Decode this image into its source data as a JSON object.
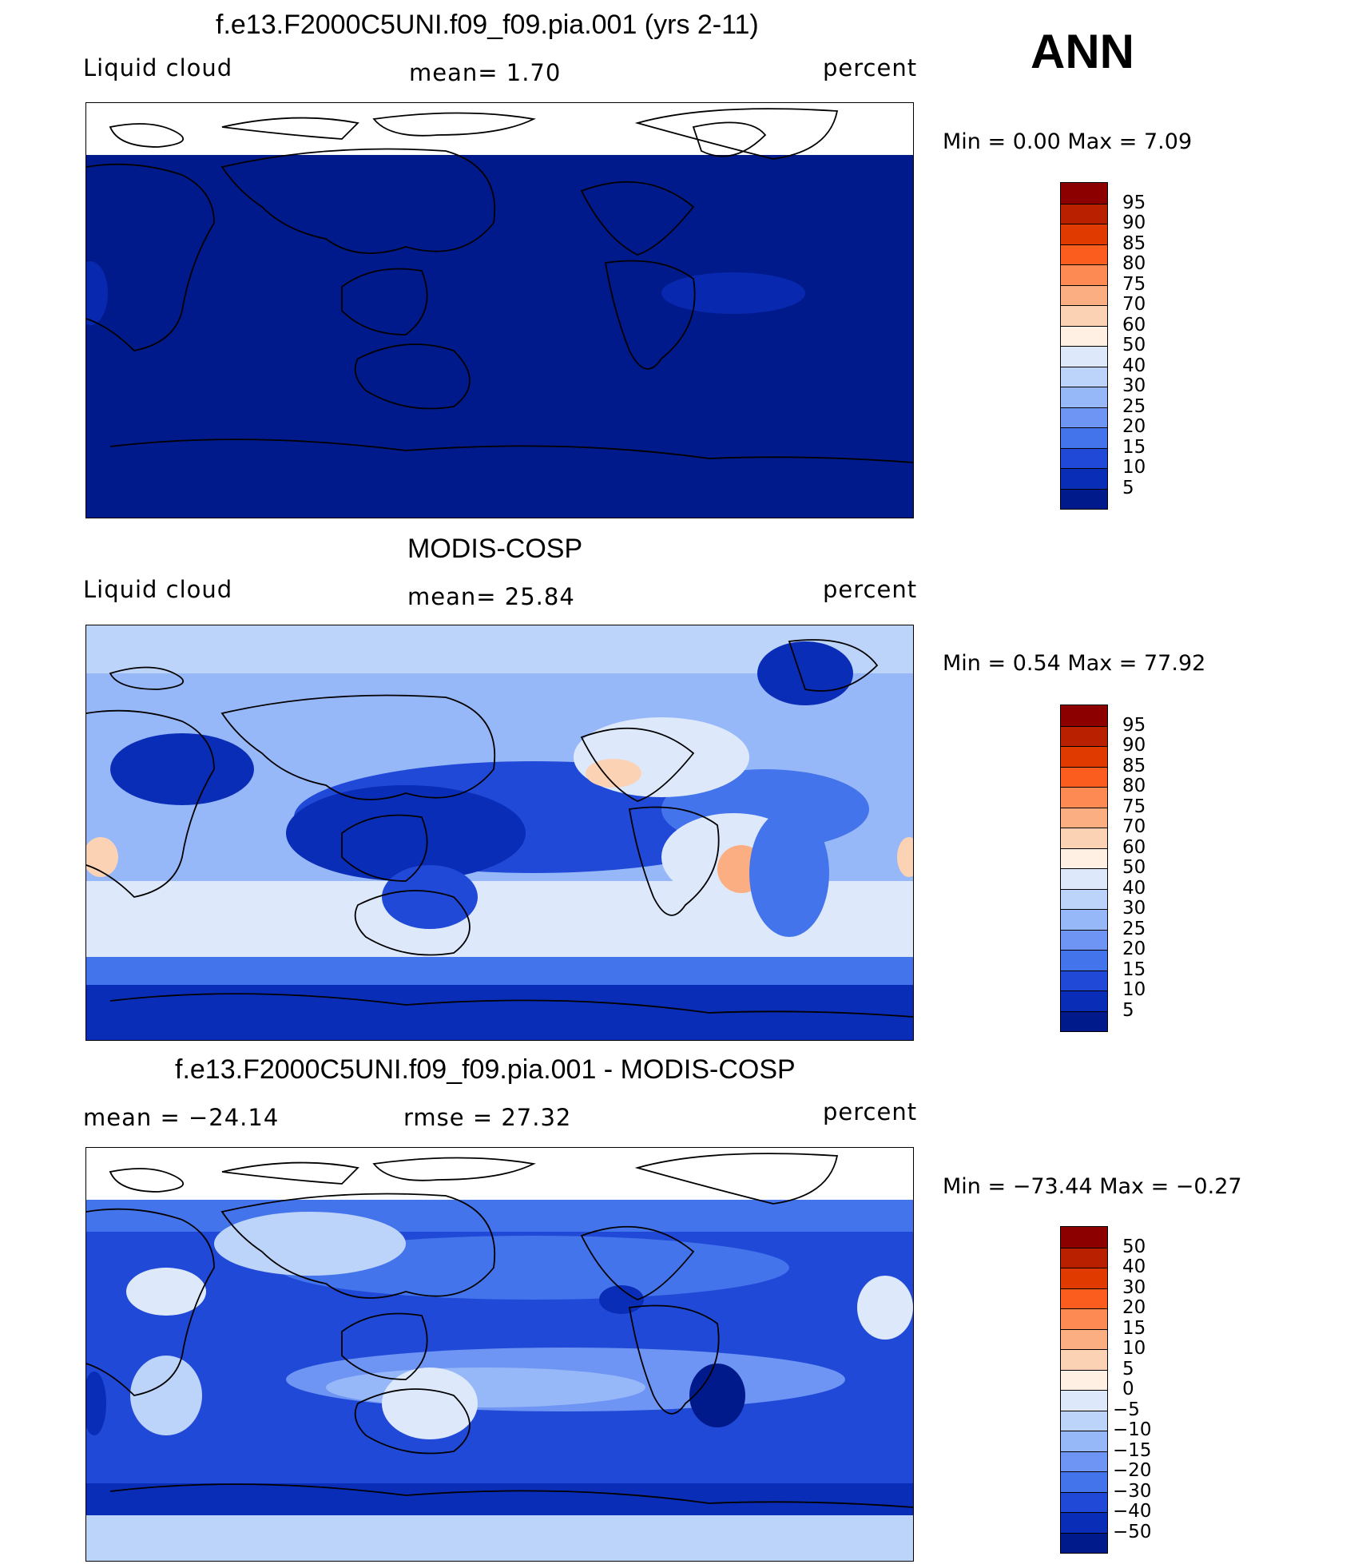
{
  "header": {
    "ann": "ANN"
  },
  "panels": [
    {
      "title": "f.e13.F2000C5UNI.f09_f09.pia.001 (yrs 2-11)",
      "left": "Liquid cloud",
      "center": "mean=    1.70",
      "right": "percent",
      "minmax": "Min  =     0.00  Max  =     7.09",
      "colorbar": {
        "labels": [
          "95",
          "90",
          "85",
          "80",
          "75",
          "70",
          "60",
          "50",
          "40",
          "30",
          "25",
          "20",
          "15",
          "10",
          "5"
        ],
        "colors": [
          "#8c0000",
          "#b82000",
          "#e13a00",
          "#fb5d1f",
          "#fd8a53",
          "#fcae83",
          "#fcd2b5",
          "#fff0e3",
          "#dde9fb",
          "#bcd3fa",
          "#97b8f8",
          "#6e95f3",
          "#4474eb",
          "#2049d8",
          "#0a2db8",
          "#001a8c"
        ]
      }
    },
    {
      "title": "MODIS-COSP",
      "left": "Liquid cloud",
      "center": "mean=   25.84",
      "right": "percent",
      "minmax": "Min  =     0.54  Max  =    77.92",
      "colorbar": {
        "labels": [
          "95",
          "90",
          "85",
          "80",
          "75",
          "70",
          "60",
          "50",
          "40",
          "30",
          "25",
          "20",
          "15",
          "10",
          "5"
        ],
        "colors": [
          "#8c0000",
          "#b82000",
          "#e13a00",
          "#fb5d1f",
          "#fd8a53",
          "#fcae83",
          "#fcd2b5",
          "#fff0e3",
          "#dde9fb",
          "#bcd3fa",
          "#97b8f8",
          "#6e95f3",
          "#4474eb",
          "#2049d8",
          "#0a2db8",
          "#001a8c"
        ]
      }
    },
    {
      "title": "f.e13.F2000C5UNI.f09_f09.pia.001 - MODIS-COSP",
      "left": "mean  =  −24.14",
      "center": "rmse  =    27.32",
      "right": "percent",
      "minmax": "Min  =  −73.44  Max  =    −0.27",
      "colorbar": {
        "labels": [
          "50",
          "40",
          "30",
          "20",
          "15",
          "10",
          "5",
          "0",
          "−5",
          "−10",
          "−15",
          "−20",
          "−30",
          "−40",
          "−50"
        ],
        "colors": [
          "#8c0000",
          "#b82000",
          "#e13a00",
          "#fb5d1f",
          "#fd8a53",
          "#fcae83",
          "#fcd2b5",
          "#fff0e3",
          "#dde9fb",
          "#bcd3fa",
          "#97b8f8",
          "#6e95f3",
          "#4474eb",
          "#2049d8",
          "#0a2db8",
          "#001a8c"
        ]
      }
    }
  ]
}
